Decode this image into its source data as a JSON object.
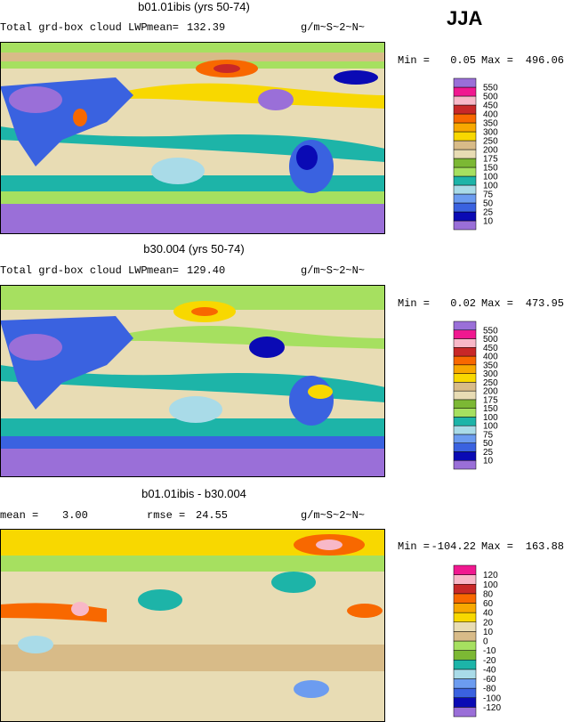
{
  "season": "JJA",
  "panels": [
    {
      "title": "b01.01ibis (yrs 50-74)",
      "variable": "Total grd-box cloud LWP",
      "mean_label": "mean=",
      "mean": "132.39",
      "units": "g/m~S~2~N~",
      "min_label": "Min =",
      "min": "0.05",
      "max_label": "Max =",
      "max": "496.06",
      "levels": [
        "10",
        "25",
        "50",
        "75",
        "100",
        "100",
        "150",
        "175",
        "200",
        "250",
        "300",
        "350",
        "400",
        "450",
        "500",
        "550"
      ],
      "colors": [
        "#9a6fd8",
        "#0a0ab4",
        "#3a62e0",
        "#6c9cf0",
        "#a9dbe8",
        "#1db4a8",
        "#a6e060",
        "#7cb834",
        "#e8dcb4",
        "#d8bb88",
        "#f8d800",
        "#f8a800",
        "#f86800",
        "#c82828",
        "#f8b8c8",
        "#f01890"
      ]
    },
    {
      "title": "b30.004 (yrs 50-74)",
      "variable": "Total grd-box cloud LWP",
      "mean_label": "mean=",
      "mean": "129.40",
      "units": "g/m~S~2~N~",
      "min_label": "Min =",
      "min": "0.02",
      "max_label": "Max =",
      "max": "473.95",
      "levels": [
        "10",
        "25",
        "50",
        "75",
        "100",
        "100",
        "150",
        "175",
        "200",
        "250",
        "300",
        "350",
        "400",
        "450",
        "500",
        "550"
      ],
      "colors": [
        "#9a6fd8",
        "#0a0ab4",
        "#3a62e0",
        "#6c9cf0",
        "#a9dbe8",
        "#1db4a8",
        "#a6e060",
        "#7cb834",
        "#e8dcb4",
        "#d8bb88",
        "#f8d800",
        "#f8a800",
        "#f86800",
        "#c82828",
        "#f8b8c8",
        "#f01890"
      ]
    },
    {
      "title": "b01.01ibis - b30.004",
      "mean_label": "mean =",
      "mean": "3.00",
      "rmse_label": "rmse =",
      "rmse": "24.55",
      "units": "g/m~S~2~N~",
      "min_label": "Min =",
      "min": "-104.22",
      "max_label": "Max =",
      "max": "163.88",
      "levels": [
        "-120",
        "-100",
        "-80",
        "-60",
        "-40",
        "-20",
        "-10",
        "0",
        "10",
        "20",
        "40",
        "60",
        "80",
        "100",
        "120"
      ],
      "colors": [
        "#9a6fd8",
        "#0a0ab4",
        "#3a62e0",
        "#6c9cf0",
        "#a9dbe8",
        "#1db4a8",
        "#7cb834",
        "#a6e060",
        "#d8bb88",
        "#e8dcb4",
        "#f8d800",
        "#f8a800",
        "#f86800",
        "#c82828",
        "#f8b8c8",
        "#f01890"
      ]
    }
  ]
}
